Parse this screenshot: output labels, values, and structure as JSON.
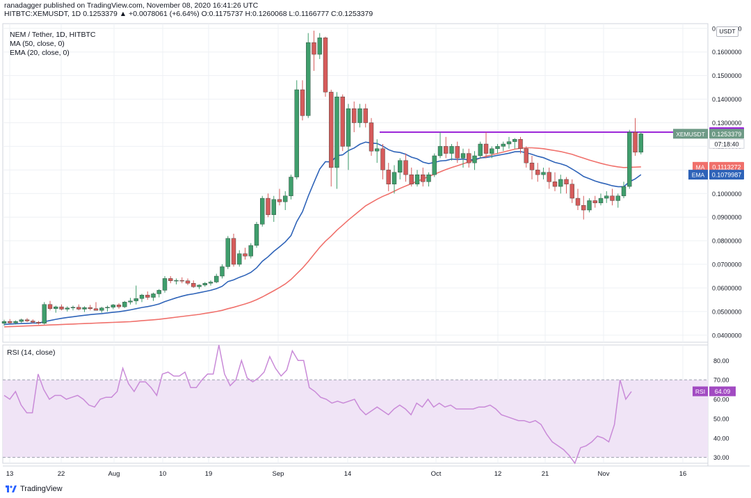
{
  "header": {
    "line1": "ranadagger published on TradingView.com, November 08, 2020 16:41:26 UTC",
    "symbol": "HITBTC:XEMUSDT, 1D",
    "last": "0.1253379",
    "change": "▲ +0.0078061 (+6.64%)",
    "o_label": "O:",
    "o_value": "0.1175737",
    "h_label": "H:",
    "h_value": "0.1260068",
    "l_label": "L:",
    "l_value": "0.1166777",
    "c_label": "C:",
    "c_value": "0.1253379"
  },
  "legend": {
    "title": "NEM / Tether, 1D, HITBTC",
    "ma": "MA (50, close, 0)",
    "ema": "EMA (20, close, 0)",
    "rsi": "RSI (14, close)"
  },
  "currency": "USDT",
  "footer": {
    "brand": "TradingView"
  },
  "colors": {
    "up": "#3f9e6c",
    "down": "#d65b5b",
    "ma": "#f0706b",
    "ema": "#2e63b8",
    "resistance": "#9c27d8",
    "rsi": "#c98ad8",
    "rsi_band": "#f0e4f6",
    "grid": "#eef0f4"
  },
  "chart_data": {
    "type": "candlestick",
    "x_ticks": [
      "13",
      "22",
      "Aug",
      "10",
      "19",
      "Sep",
      "14",
      "Oct",
      "12",
      "21",
      "Nov",
      "16"
    ],
    "y_ticks": [
      "0.1700000",
      "0.1600000",
      "0.1500000",
      "0.1400000",
      "0.1300000",
      "0.1200000",
      "0.1100000",
      "0.1000000",
      "0.0900000",
      "0.0800000",
      "0.0700000",
      "0.0600000",
      "0.0500000",
      "0.0400000"
    ],
    "ylim": [
      0.037,
      0.172
    ],
    "resistance": 0.126,
    "price_labels": {
      "resistance": "0.1260000",
      "last_name": "XEMUSDT",
      "last_value": "0.1253379",
      "countdown": "07:18:40",
      "ma_name": "MA",
      "ma_value": "0.1113272",
      "ema_name": "EMA",
      "ema_value": "0.1079987"
    },
    "candles": [
      [
        0.045,
        0.0465,
        0.044,
        0.0458
      ],
      [
        0.0458,
        0.0468,
        0.0448,
        0.0452
      ],
      [
        0.0452,
        0.0462,
        0.0445,
        0.0458
      ],
      [
        0.0458,
        0.047,
        0.0452,
        0.0465
      ],
      [
        0.0465,
        0.0472,
        0.0455,
        0.046
      ],
      [
        0.046,
        0.0467,
        0.045,
        0.0455
      ],
      [
        0.0455,
        0.046,
        0.0445,
        0.045
      ],
      [
        0.045,
        0.054,
        0.0445,
        0.053
      ],
      [
        0.053,
        0.0545,
        0.0505,
        0.0512
      ],
      [
        0.0512,
        0.0525,
        0.0495,
        0.052
      ],
      [
        0.052,
        0.053,
        0.0505,
        0.051
      ],
      [
        0.051,
        0.0522,
        0.05,
        0.0515
      ],
      [
        0.0515,
        0.0525,
        0.0505,
        0.0518
      ],
      [
        0.0518,
        0.053,
        0.0505,
        0.051
      ],
      [
        0.051,
        0.0522,
        0.0498,
        0.0517
      ],
      [
        0.0517,
        0.0528,
        0.0505,
        0.0512
      ],
      [
        0.0512,
        0.054,
        0.0505,
        0.0505
      ],
      [
        0.0505,
        0.052,
        0.0495,
        0.0515
      ],
      [
        0.0515,
        0.0525,
        0.05,
        0.0518
      ],
      [
        0.0518,
        0.0532,
        0.051,
        0.0528
      ],
      [
        0.0528,
        0.0535,
        0.0512,
        0.052
      ],
      [
        0.052,
        0.0545,
        0.0515,
        0.054
      ],
      [
        0.054,
        0.0558,
        0.053,
        0.0545
      ],
      [
        0.0545,
        0.061,
        0.053,
        0.0555
      ],
      [
        0.0555,
        0.0575,
        0.054,
        0.057
      ],
      [
        0.057,
        0.0585,
        0.055,
        0.056
      ],
      [
        0.056,
        0.058,
        0.0545,
        0.0575
      ],
      [
        0.0575,
        0.0595,
        0.056,
        0.059
      ],
      [
        0.059,
        0.065,
        0.058,
        0.064
      ],
      [
        0.064,
        0.065,
        0.062,
        0.063
      ],
      [
        0.063,
        0.064,
        0.0615,
        0.0632
      ],
      [
        0.0632,
        0.0645,
        0.062,
        0.063
      ],
      [
        0.063,
        0.064,
        0.0612,
        0.062
      ],
      [
        0.062,
        0.0632,
        0.06,
        0.0605
      ],
      [
        0.0605,
        0.0615,
        0.0595,
        0.0612
      ],
      [
        0.0612,
        0.0625,
        0.0605,
        0.062
      ],
      [
        0.062,
        0.0632,
        0.061,
        0.0625
      ],
      [
        0.0625,
        0.066,
        0.062,
        0.065
      ],
      [
        0.065,
        0.07,
        0.064,
        0.069
      ],
      [
        0.069,
        0.082,
        0.068,
        0.081
      ],
      [
        0.081,
        0.083,
        0.069,
        0.07
      ],
      [
        0.07,
        0.076,
        0.069,
        0.0745
      ],
      [
        0.0745,
        0.077,
        0.072,
        0.0735
      ],
      [
        0.0735,
        0.079,
        0.0725,
        0.078
      ],
      [
        0.078,
        0.088,
        0.077,
        0.087
      ],
      [
        0.087,
        0.099,
        0.086,
        0.098
      ],
      [
        0.098,
        0.1,
        0.09,
        0.091
      ],
      [
        0.091,
        0.099,
        0.088,
        0.0975
      ],
      [
        0.0975,
        0.102,
        0.095,
        0.0965
      ],
      [
        0.0965,
        0.101,
        0.093,
        0.099
      ],
      [
        0.099,
        0.108,
        0.0975,
        0.107
      ],
      [
        0.107,
        0.148,
        0.106,
        0.144
      ],
      [
        0.144,
        0.148,
        0.131,
        0.133
      ],
      [
        0.133,
        0.168,
        0.132,
        0.164
      ],
      [
        0.164,
        0.169,
        0.152,
        0.159
      ],
      [
        0.159,
        0.168,
        0.157,
        0.166
      ],
      [
        0.166,
        0.1665,
        0.141,
        0.143
      ],
      [
        0.143,
        0.144,
        0.103,
        0.111
      ],
      [
        0.111,
        0.143,
        0.102,
        0.141
      ],
      [
        0.141,
        0.142,
        0.118,
        0.12
      ],
      [
        0.12,
        0.138,
        0.11,
        0.136
      ],
      [
        0.136,
        0.139,
        0.126,
        0.13
      ],
      [
        0.13,
        0.138,
        0.128,
        0.136
      ],
      [
        0.136,
        0.138,
        0.128,
        0.13
      ],
      [
        0.13,
        0.132,
        0.116,
        0.118
      ],
      [
        0.118,
        0.123,
        0.113,
        0.119
      ],
      [
        0.119,
        0.121,
        0.106,
        0.11
      ],
      [
        0.11,
        0.113,
        0.101,
        0.104
      ],
      [
        0.104,
        0.112,
        0.1,
        0.109
      ],
      [
        0.109,
        0.115,
        0.106,
        0.114
      ],
      [
        0.114,
        0.117,
        0.105,
        0.108
      ],
      [
        0.108,
        0.111,
        0.103,
        0.104
      ],
      [
        0.104,
        0.11,
        0.103,
        0.108
      ],
      [
        0.108,
        0.111,
        0.103,
        0.105
      ],
      [
        0.105,
        0.109,
        0.103,
        0.108
      ],
      [
        0.108,
        0.117,
        0.107,
        0.116
      ],
      [
        0.116,
        0.126,
        0.115,
        0.12
      ],
      [
        0.12,
        0.124,
        0.115,
        0.117
      ],
      [
        0.117,
        0.121,
        0.114,
        0.12
      ],
      [
        0.12,
        0.122,
        0.113,
        0.115
      ],
      [
        0.115,
        0.119,
        0.111,
        0.117
      ],
      [
        0.117,
        0.119,
        0.111,
        0.113
      ],
      [
        0.113,
        0.118,
        0.11,
        0.116
      ],
      [
        0.116,
        0.122,
        0.115,
        0.121
      ],
      [
        0.121,
        0.126,
        0.115,
        0.117
      ],
      [
        0.117,
        0.12,
        0.115,
        0.119
      ],
      [
        0.119,
        0.121,
        0.117,
        0.12
      ],
      [
        0.12,
        0.122,
        0.118,
        0.121
      ],
      [
        0.121,
        0.124,
        0.119,
        0.122
      ],
      [
        0.122,
        0.1235,
        0.119,
        0.123
      ],
      [
        0.123,
        0.124,
        0.117,
        0.119
      ],
      [
        0.119,
        0.12,
        0.111,
        0.113
      ],
      [
        0.113,
        0.116,
        0.106,
        0.11
      ],
      [
        0.11,
        0.113,
        0.105,
        0.108
      ],
      [
        0.108,
        0.111,
        0.106,
        0.109
      ],
      [
        0.109,
        0.111,
        0.102,
        0.105
      ],
      [
        0.105,
        0.109,
        0.101,
        0.103
      ],
      [
        0.103,
        0.108,
        0.1,
        0.106
      ],
      [
        0.106,
        0.107,
        0.1,
        0.104
      ],
      [
        0.104,
        0.106,
        0.096,
        0.098
      ],
      [
        0.098,
        0.102,
        0.093,
        0.095
      ],
      [
        0.095,
        0.099,
        0.089,
        0.093
      ],
      [
        0.093,
        0.098,
        0.092,
        0.097
      ],
      [
        0.097,
        0.099,
        0.094,
        0.096
      ],
      [
        0.096,
        0.1,
        0.095,
        0.098
      ],
      [
        0.098,
        0.101,
        0.096,
        0.099
      ],
      [
        0.099,
        0.102,
        0.095,
        0.097
      ],
      [
        0.097,
        0.1,
        0.094,
        0.099
      ],
      [
        0.099,
        0.105,
        0.098,
        0.103
      ],
      [
        0.103,
        0.127,
        0.102,
        0.126
      ],
      [
        0.126,
        0.132,
        0.116,
        0.1175
      ],
      [
        0.1175,
        0.126,
        0.1166,
        0.1253
      ]
    ],
    "ema": [
      0.0445,
      0.0447,
      0.0448,
      0.0449,
      0.045,
      0.0451,
      0.0451,
      0.0457,
      0.0462,
      0.0467,
      0.0471,
      0.0475,
      0.0478,
      0.0481,
      0.0484,
      0.0487,
      0.0489,
      0.0491,
      0.0494,
      0.0497,
      0.0499,
      0.0503,
      0.0507,
      0.0512,
      0.0517,
      0.0521,
      0.0526,
      0.0532,
      0.0542,
      0.055,
      0.0558,
      0.0565,
      0.0571,
      0.0575,
      0.058,
      0.0585,
      0.059,
      0.0597,
      0.0607,
      0.0627,
      0.0634,
      0.0645,
      0.0654,
      0.0666,
      0.0685,
      0.0713,
      0.0732,
      0.0755,
      0.0774,
      0.0795,
      0.0822,
      0.0881,
      0.0923,
      0.0989,
      0.1047,
      0.1104,
      0.1135,
      0.1134,
      0.116,
      0.1164,
      0.1182,
      0.1193,
      0.1209,
      0.1218,
      0.1214,
      0.1212,
      0.1201,
      0.1186,
      0.1177,
      0.1174,
      0.1166,
      0.1154,
      0.1147,
      0.1133,
      0.1127,
      0.1132,
      0.1138,
      0.114,
      0.1146,
      0.1144,
      0.1146,
      0.1142,
      0.1144,
      0.1151,
      0.1153,
      0.1157,
      0.1162,
      0.1166,
      0.1171,
      0.1177,
      0.1178,
      0.1173,
      0.1166,
      0.1158,
      0.1152,
      0.1142,
      0.1132,
      0.1126,
      0.1118,
      0.1104,
      0.1089,
      0.1072,
      0.1063,
      0.1053,
      0.1046,
      0.104,
      0.1033,
      0.1029,
      0.1029,
      0.105,
      0.1062,
      0.108
    ],
    "ma": [
      0.0435,
      0.0436,
      0.0437,
      0.0438,
      0.0439,
      0.044,
      0.0441,
      0.0442,
      0.0443,
      0.0444,
      0.0445,
      0.0446,
      0.0447,
      0.0448,
      0.0449,
      0.045,
      0.0451,
      0.0452,
      0.0453,
      0.0454,
      0.0455,
      0.0456,
      0.0457,
      0.0459,
      0.0461,
      0.0463,
      0.0465,
      0.0467,
      0.047,
      0.0473,
      0.0476,
      0.0479,
      0.0482,
      0.0485,
      0.0488,
      0.0492,
      0.0496,
      0.05,
      0.0505,
      0.0512,
      0.0518,
      0.0525,
      0.0532,
      0.054,
      0.055,
      0.0562,
      0.0575,
      0.0588,
      0.0602,
      0.0617,
      0.0636,
      0.066,
      0.0684,
      0.0712,
      0.0742,
      0.0772,
      0.0798,
      0.082,
      0.0845,
      0.0866,
      0.0888,
      0.0908,
      0.0928,
      0.0948,
      0.0962,
      0.0976,
      0.0988,
      0.0998,
      0.101,
      0.1022,
      0.1032,
      0.1042,
      0.1052,
      0.1062,
      0.1072,
      0.1082,
      0.1092,
      0.1102,
      0.111,
      0.1118,
      0.1126,
      0.1134,
      0.1142,
      0.115,
      0.1158,
      0.1164,
      0.117,
      0.1176,
      0.1182,
      0.1188,
      0.1192,
      0.1194,
      0.1194,
      0.1192,
      0.119,
      0.1186,
      0.1182,
      0.1178,
      0.1172,
      0.1166,
      0.1158,
      0.115,
      0.1142,
      0.1135,
      0.1128,
      0.1122,
      0.1117,
      0.1113,
      0.111,
      0.1111,
      0.1112,
      0.1113
    ],
    "rsi": {
      "ticks": [
        "80.00",
        "70.00",
        "60.00",
        "50.00",
        "40.00",
        "30.00"
      ],
      "ylim": [
        27,
        88
      ],
      "band": [
        30,
        70
      ],
      "label_name": "RSI",
      "label_value": "64.09",
      "values": [
        62,
        60,
        64,
        57,
        53,
        53,
        73,
        65,
        60,
        62,
        62,
        60,
        61,
        62,
        60,
        57,
        56,
        60,
        61,
        61,
        64,
        76,
        68,
        64,
        69,
        69,
        66,
        62,
        73,
        74,
        72,
        72,
        74,
        66,
        66,
        70,
        73,
        73,
        88,
        73,
        67,
        70,
        80,
        71,
        69,
        71,
        74,
        82,
        76,
        72,
        75,
        85,
        80,
        80,
        66,
        64,
        61,
        60,
        58,
        59,
        58,
        59,
        60,
        55,
        52,
        54,
        56,
        54,
        52,
        55,
        57,
        55,
        52,
        58,
        56,
        60,
        56,
        58,
        56,
        57,
        55,
        55,
        55,
        55,
        56,
        56,
        57,
        55,
        52,
        51,
        50,
        49,
        49,
        48,
        49,
        47,
        42,
        38,
        36,
        34,
        31,
        27,
        35,
        36,
        38,
        41,
        40,
        38,
        47,
        70,
        60,
        64
      ]
    }
  }
}
